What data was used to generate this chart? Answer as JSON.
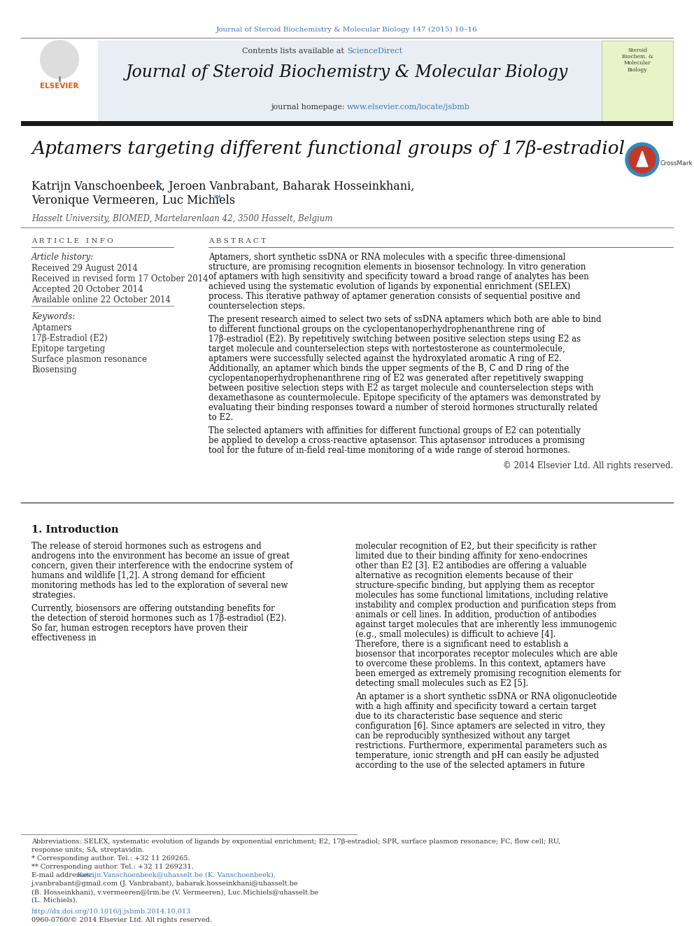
{
  "journal_citation": "Journal of Steroid Biochemistry & Molecular Biology 147 (2015) 10–16",
  "journal_name": "Journal of Steroid Biochemistry & Molecular Biology",
  "contents_text": "Contents lists available at ",
  "science_direct": "ScienceDirect",
  "journal_homepage_prefix": "journal homepage: ",
  "journal_homepage_url": "www.elsevier.com/locate/jsbmb",
  "title": "Aptamers targeting different functional groups of 17β-estradiol",
  "affiliation": "Hasselt University, BIOMED, Martelarenlaan 42, 3500 Hasselt, Belgium",
  "article_info_label": "A R T I C L E   I N F O",
  "abstract_label": "A B S T R A C T",
  "article_history_label": "Article history:",
  "received": "Received 29 August 2014",
  "received_revised": "Received in revised form 17 October 2014",
  "accepted": "Accepted 20 October 2014",
  "available_online": "Available online 22 October 2014",
  "keywords_label": "Keywords:",
  "keywords": [
    "Aptamers",
    "17β-Estradiol (E2)",
    "Epitope targeting",
    "Surface plasmon resonance",
    "Biosensing"
  ],
  "abstract_p1": "Aptamers, short synthetic ssDNA or RNA molecules with a specific three-dimensional structure, are promising recognition elements in biosensor technology. In vitro generation of aptamers with high sensitivity and specificity toward a broad range of analytes has been achieved using the systematic evolution of ligands by exponential enrichment (SELEX) process. This iterative pathway of aptamer generation consists of sequential positive and counterselection steps.",
  "abstract_p2": "The present research aimed to select two sets of ssDNA aptamers which both are able to bind to different functional groups on the cyclopentanoperhydrophenanthrene ring of 17β-estradiol (E2). By repetitively switching between positive selection steps using E2 as target molecule and counterselection steps with nortestosterone as countermolecule, aptamers were successfully selected against the hydroxylated aromatic A ring of E2. Additionally, an aptamer which binds the upper segments of the B, C and D ring of the cyclopentanoperhydrophenanthrene ring of E2 was generated after repetitively swapping between positive selection steps with E2 as target molecule and counterselection steps with dexamethasone as countermolecule. Epitope specificity of the aptamers was demonstrated by evaluating their binding responses toward a number of steroid hormones structurally related to E2.",
  "abstract_p3": "The selected aptamers with affinities for different functional groups of E2 can potentially be applied to develop a cross-reactive aptasensor. This aptasensor introduces a promising tool for the future of in-field real-time monitoring of a wide range of steroid hormones.",
  "copyright": "© 2014 Elsevier Ltd. All rights reserved.",
  "intro_heading": "1. Introduction",
  "intro_col1_p1": "The release of steroid hormones such as estrogens and androgens into the environment has become an issue of great concern, given their interference with the endocrine system of humans and wildlife [1,2]. A strong demand for efficient monitoring methods has led to the exploration of several new strategies.",
  "intro_col1_p2": "Currently, biosensors are offering outstanding benefits for the detection of steroid hormones such as 17β-estradiol (E2). So far, human estrogen receptors have proven their effectiveness in",
  "intro_col2_p1": "molecular recognition of E2, but their specificity is rather limited due to their binding affinity for xeno-endocrines other than E2 [3]. E2 antibodies are offering a valuable alternative as recognition elements because of their structure-specific binding, but applying them as receptor molecules has some functional limitations, including relative instability and complex production and purification steps from animals or cell lines. In addition, production of antibodies against target molecules that are inherently less immunogenic (e.g., small molecules) is difficult to achieve [4]. Therefore, there is a significant need to establish a biosensor that incorporates receptor molecules which are able to overcome these problems. In this context, aptamers have been emerged as extremely promising recognition elements for detecting small molecules such as E2 [5].",
  "intro_col2_p2": "An aptamer is a short synthetic ssDNA or RNA oligonucleotide with a high affinity and specificity toward a certain target due to its characteristic base sequence and steric configuration [6]. Since aptamers are selected in vitro, they can be reproducibly synthesized without any target restrictions. Furthermore, experimental parameters such as temperature, ionic strength and pH can easily be adjusted according to the use of the selected aptamers in future",
  "footnote_abbrev": "Abbreviations: SELEX, systematic evolution of ligands by exponential enrichment; E2, 17β-estradiol; SPR, surface plasmon resonance; FC, flow cell; RU,",
  "footnote_abbrev2": "response units; SA, streptavidin.",
  "footnote_star": "* Corresponding author. Tel.: +32 11 269265.",
  "footnote_double_star": "** Corresponding author. Tel.: +32 11 269231.",
  "footnote_email_label": "E-mail addresses:",
  "footnote_email1": " Katrijn.Vanschoenbeek@uhasselt.be (K. Vanschoenbeek),",
  "footnote_email2": "j.vanbrabant@gmail.com (J. Vanbrabant), baharak.hosseinkhani@uhasselt.be",
  "footnote_email3": "(B. Hosseinkhani), v.vermeeren@lrm.be (V. Vermeeren), Luc.Michiels@uhasselt.be",
  "footnote_email4": "(L. Michiels).",
  "doi": "http://dx.doi.org/10.1016/j.jsbmb.2014.10.013",
  "issn": "0960-0760/© 2014 Elsevier Ltd. All rights reserved.",
  "header_bg": "#e8eef4",
  "link_color": "#3d7ab5",
  "black_bar_color": "#1a1a1a",
  "elsevier_color": "#e8520a"
}
